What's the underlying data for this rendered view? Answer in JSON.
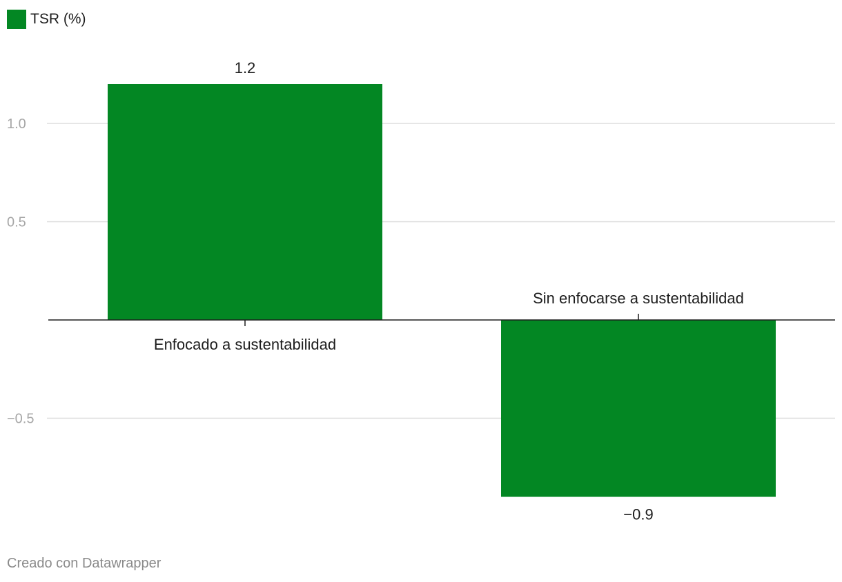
{
  "colors": {
    "bar": "#038723",
    "grid": "#dddddd",
    "axis": "#1d1d1d",
    "tick_label": "#a6a6a6",
    "text": "#1d1d1d"
  },
  "legend": {
    "label": "TSR (%)"
  },
  "credit": "Creado con Datawrapper",
  "chart_data": {
    "type": "bar",
    "categories": [
      "Enfocado a sustentabilidad",
      "Sin enfocarse a sustentabilidad"
    ],
    "series": [
      {
        "name": "TSR (%)",
        "values": [
          1.2,
          -0.9
        ]
      }
    ],
    "value_labels": [
      "1.2",
      "−0.9"
    ],
    "y_ticks": [
      -0.5,
      0.5,
      1.0
    ],
    "y_tick_labels": [
      "−0.5",
      "0.5",
      "1.0"
    ],
    "ylim": [
      -1.0,
      1.2
    ],
    "grid": true,
    "legend_position": "top-left"
  }
}
